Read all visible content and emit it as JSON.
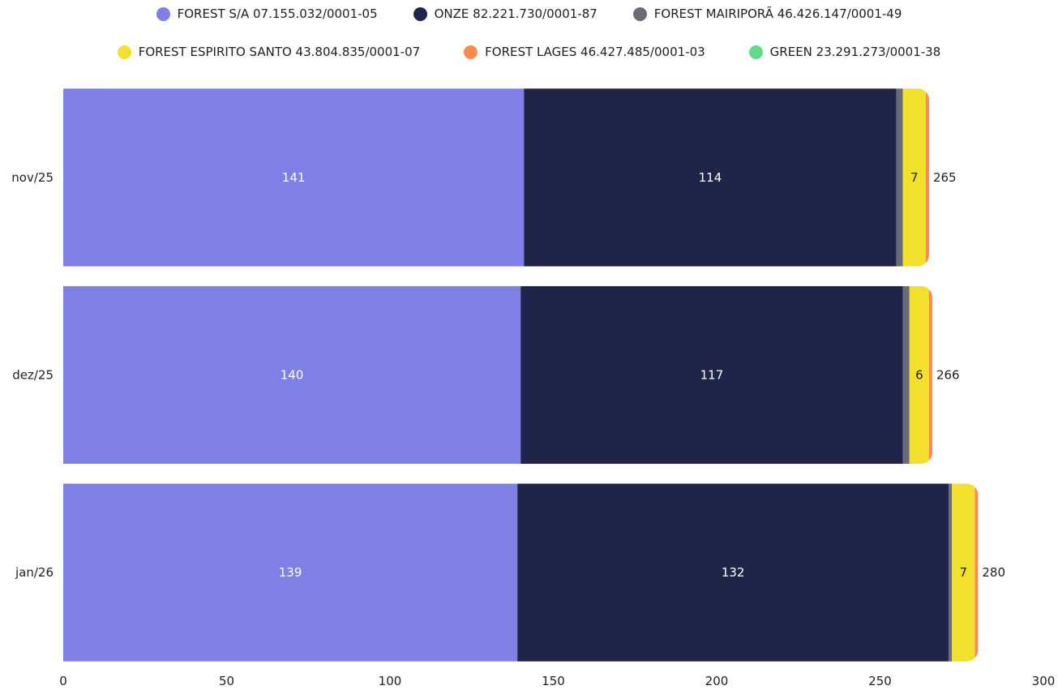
{
  "chart_data": {
    "type": "bar",
    "orientation": "horizontal",
    "stacked": true,
    "legend_position": "top",
    "categories": [
      "nov/25",
      "dez/25",
      "jan/26"
    ],
    "series": [
      {
        "name": "FOREST S/A 07.155.032/0001-05",
        "color": "#7f80e6",
        "label_color": "#ffffff",
        "values": [
          141,
          140,
          139
        ]
      },
      {
        "name": "ONZE 82.221.730/0001-87",
        "color": "#1f2548",
        "label_color": "#ffffff",
        "values": [
          114,
          117,
          132
        ]
      },
      {
        "name": "FOREST MAIRIPORÃ 46.426.147/0001-49",
        "color": "#6b6b78",
        "label_color": "#ffffff",
        "values": [
          2,
          2,
          1
        ]
      },
      {
        "name": "FOREST ESPIRITO SANTO 43.804.835/0001-07",
        "color": "#f2e02c",
        "label_color": "#1f1f1f",
        "values": [
          7,
          6,
          7
        ]
      },
      {
        "name": "FOREST LAGES 46.427.485/0001-03",
        "color": "#fb8c4c",
        "label_color": "#1f1f1f",
        "values": [
          1,
          1,
          1
        ]
      },
      {
        "name": "GREEN 23.291.273/0001-38",
        "color": "#5fdc8a",
        "label_color": "#1f1f1f",
        "values": [
          0,
          0,
          0
        ]
      }
    ],
    "totals": [
      265,
      266,
      280
    ],
    "xlim": [
      0,
      300
    ],
    "xticks": [
      0,
      50,
      100,
      150,
      200,
      250,
      300
    ],
    "grid": false,
    "title": "",
    "xlabel": "",
    "ylabel": ""
  }
}
